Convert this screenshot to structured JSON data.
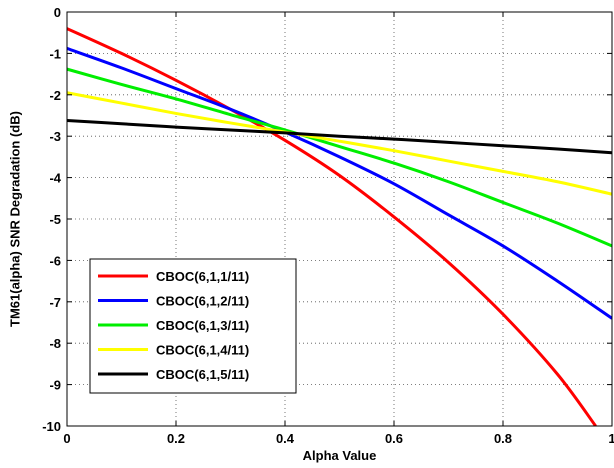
{
  "chart_data": {
    "type": "line",
    "title": "",
    "xlabel": "Alpha Value",
    "ylabel": "TM61(alpha) SNR Degradation (dB)",
    "xlim": [
      0,
      1
    ],
    "ylim": [
      -10,
      0
    ],
    "xticks": [
      0,
      0.2,
      0.4,
      0.6,
      0.8,
      1
    ],
    "xtick_labels": [
      "0",
      "0.2",
      "0.4",
      "0.6",
      "0.8",
      "1"
    ],
    "yticks": [
      0,
      -1,
      -2,
      -3,
      -4,
      -5,
      -6,
      -7,
      -8,
      -9,
      -10
    ],
    "ytick_labels": [
      "0",
      "-1",
      "-2",
      "-3",
      "-4",
      "-5",
      "-6",
      "-7",
      "-8",
      "-9",
      "-10"
    ],
    "grid": true,
    "legend_position": "lower-left",
    "x": [
      0,
      0.1,
      0.2,
      0.3,
      0.4,
      0.5,
      0.6,
      0.7,
      0.8,
      0.9,
      1.0
    ],
    "series": [
      {
        "name": "CBOC(6,1,1/11)",
        "color": "#ff0000",
        "x": [
          0,
          0.1,
          0.2,
          0.3,
          0.4,
          0.5,
          0.6,
          0.7,
          0.8,
          0.9,
          0.97
        ],
        "values": [
          -0.4,
          -1.0,
          -1.65,
          -2.35,
          -3.1,
          -3.95,
          -4.95,
          -6.05,
          -7.3,
          -8.75,
          -10.0
        ]
      },
      {
        "name": "CBOC(6,1,2/11)",
        "color": "#0000ff",
        "x": [
          0,
          0.1,
          0.2,
          0.3,
          0.4,
          0.5,
          0.6,
          0.7,
          0.8,
          0.9,
          1.0
        ],
        "values": [
          -0.88,
          -1.35,
          -1.85,
          -2.35,
          -2.9,
          -3.5,
          -4.15,
          -4.9,
          -5.65,
          -6.5,
          -7.4
        ]
      },
      {
        "name": "CBOC(6,1,3/11)",
        "color": "#00ee00",
        "x": [
          0,
          0.1,
          0.2,
          0.3,
          0.4,
          0.5,
          0.6,
          0.7,
          0.8,
          0.9,
          1.0
        ],
        "values": [
          -1.38,
          -1.75,
          -2.1,
          -2.48,
          -2.85,
          -3.25,
          -3.65,
          -4.1,
          -4.6,
          -5.1,
          -5.65
        ]
      },
      {
        "name": "CBOC(6,1,4/11)",
        "color": "#ffff00",
        "x": [
          0,
          0.1,
          0.2,
          0.3,
          0.4,
          0.5,
          0.6,
          0.7,
          0.8,
          0.9,
          1.0
        ],
        "values": [
          -1.95,
          -2.2,
          -2.45,
          -2.68,
          -2.9,
          -3.12,
          -3.35,
          -3.6,
          -3.85,
          -4.1,
          -4.4
        ]
      },
      {
        "name": "CBOC(6,1,5/11)",
        "color": "#000000",
        "x": [
          0,
          0.1,
          0.2,
          0.3,
          0.4,
          0.5,
          0.6,
          0.7,
          0.8,
          0.9,
          1.0
        ],
        "values": [
          -2.62,
          -2.7,
          -2.78,
          -2.85,
          -2.92,
          -3.0,
          -3.07,
          -3.15,
          -3.23,
          -3.31,
          -3.4
        ]
      }
    ]
  }
}
